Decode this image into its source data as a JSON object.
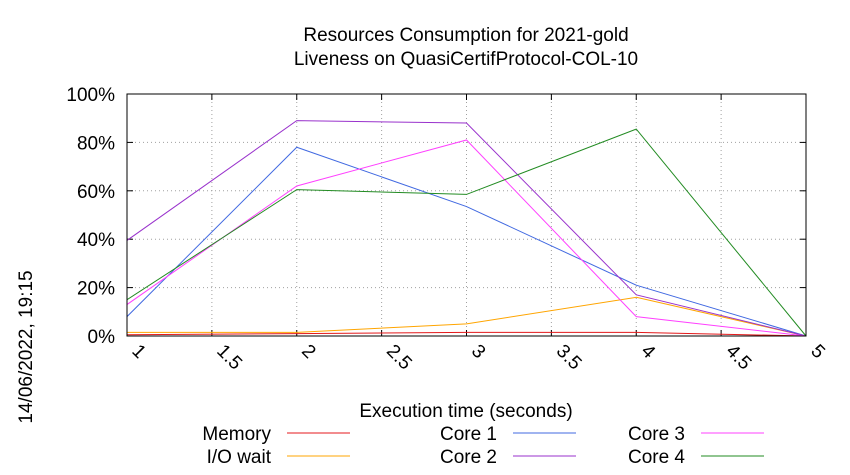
{
  "chart_data": {
    "type": "line",
    "title": "Resources Consumption for 2021-gold",
    "subtitle": "Liveness on QuasiCertifProtocol-COL-10",
    "xlabel": "Execution time (seconds)",
    "ylabel": "",
    "xlim": [
      1,
      5
    ],
    "ylim": [
      0,
      100
    ],
    "x_ticks": [
      "1",
      "1.5",
      "2",
      "2.5",
      "3",
      "3.5",
      "4",
      "4.5",
      "5"
    ],
    "x_tick_values": [
      1,
      1.5,
      2,
      2.5,
      3,
      3.5,
      4,
      4.5,
      5
    ],
    "y_ticks": [
      "0%",
      "20%",
      "40%",
      "60%",
      "80%",
      "100%"
    ],
    "y_tick_values": [
      0,
      20,
      40,
      60,
      80,
      100
    ],
    "grid": true,
    "legend_position": "bottom",
    "x": [
      1,
      2,
      3,
      4,
      5
    ],
    "series": [
      {
        "name": "Memory",
        "color": "#e41a1c",
        "values": [
          0.5,
          1,
          1.5,
          1.5,
          0
        ]
      },
      {
        "name": "I/O wait",
        "color": "#ffa500",
        "values": [
          1.5,
          1.5,
          5,
          16,
          0
        ]
      },
      {
        "name": "Core 1",
        "color": "#4169e1",
        "values": [
          8,
          78,
          53.5,
          21,
          0
        ]
      },
      {
        "name": "Core 2",
        "color": "#9932cc",
        "values": [
          39.5,
          89,
          88,
          17,
          0
        ]
      },
      {
        "name": "Core 3",
        "color": "#ff40ff",
        "values": [
          13,
          62,
          81,
          8,
          0
        ]
      },
      {
        "name": "Core 4",
        "color": "#228b22",
        "values": [
          15,
          60.5,
          58.5,
          85.5,
          0
        ]
      }
    ]
  },
  "timestamp": "14/06/2022, 19:15"
}
